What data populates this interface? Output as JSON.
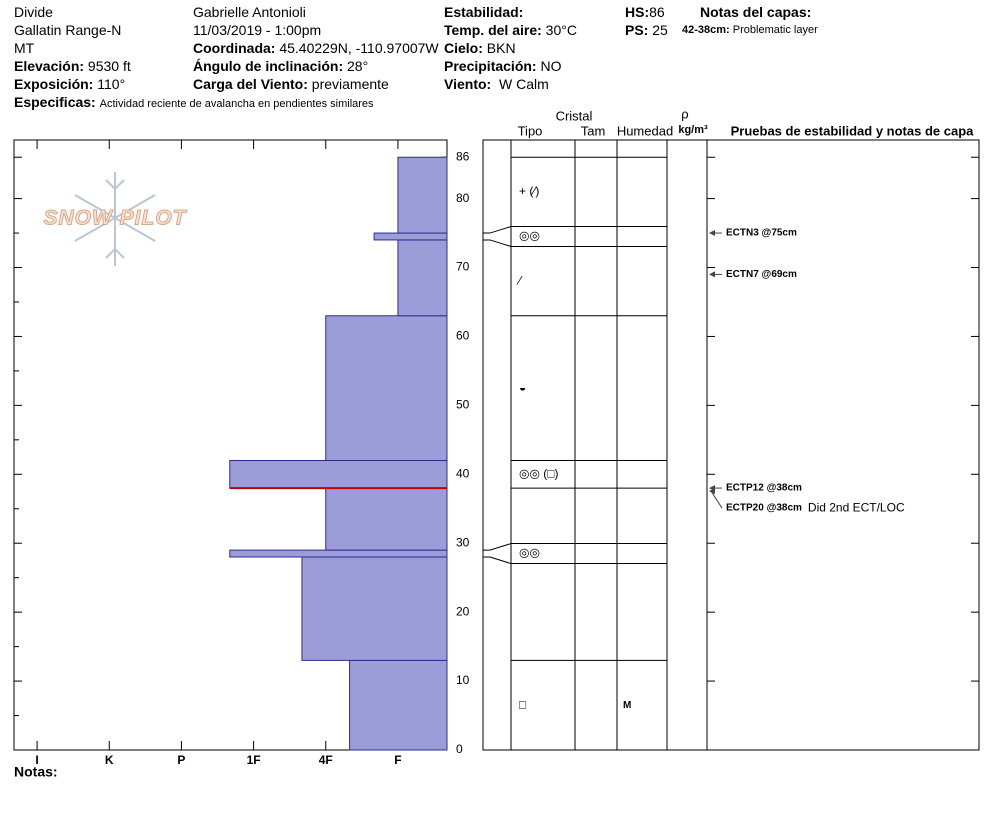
{
  "header": {
    "site": "Divide",
    "range": "Gallatin Range-N",
    "state": "MT",
    "elevation": {
      "label": "Elevación:",
      "value": "9530 ft"
    },
    "aspect": {
      "label": "Exposición:",
      "value": "110°"
    },
    "specifics": {
      "label": "Especificas:",
      "value": "Actividad reciente de avalancha en pendientes similares"
    },
    "observer": "Gabrielle Antonioli",
    "datetime": "11/03/2019 - 1:00pm",
    "coordinates": {
      "label": "Coordinada:",
      "value": "45.40229N, -110.97007W"
    },
    "slope": {
      "label": "Ángulo de inclinación:",
      "value": "28°"
    },
    "wind_loading": {
      "label": "Carga del Viento:",
      "value": "previamente"
    },
    "stability": {
      "label": "Estabilidad:"
    },
    "air_temp": {
      "label": "Temp. del aire:",
      "value": "30°C"
    },
    "sky": {
      "label": "Cielo:",
      "value": "BKN"
    },
    "precipitation": {
      "label": "Precipitación:",
      "value": "NO"
    },
    "wind": {
      "label": "Viento:",
      "value": "W Calm"
    },
    "hs": {
      "label": "HS:",
      "value": "86"
    },
    "ps": {
      "label": "PS:",
      "value": "25"
    },
    "layer_notes": {
      "label": "Notas del capas:",
      "range": "42-38cm:",
      "text": "Problematic layer"
    }
  },
  "chart_data": {
    "type": "snow-profile",
    "logo": "SNOW PILOT",
    "ylim": [
      0,
      88.5
    ],
    "yticks": [
      0,
      10,
      20,
      30,
      40,
      50,
      60,
      70,
      80,
      86
    ],
    "minor_yticks": [
      5,
      15,
      25,
      35,
      45,
      55,
      65,
      75
    ],
    "xlim": [
      6.32,
      0.32
    ],
    "xticks": [
      {
        "value": 6,
        "label": "I"
      },
      {
        "value": 5,
        "label": "K"
      },
      {
        "value": 4,
        "label": "P"
      },
      {
        "value": 3,
        "label": "1F"
      },
      {
        "value": 2,
        "label": "4F"
      },
      {
        "value": 1,
        "label": "F"
      }
    ],
    "color": "#9c9cd8",
    "critical_height": 38,
    "layers": [
      {
        "bottom": 0,
        "top": 13,
        "hardness": 1.67,
        "grain": "□",
        "moisture": "M"
      },
      {
        "bottom": 13,
        "top": 28,
        "hardness": 2.33
      },
      {
        "bottom": 28,
        "top": 29,
        "hardness": 3.33,
        "grain": "◎◎"
      },
      {
        "bottom": 29,
        "top": 38,
        "hardness": 2
      },
      {
        "bottom": 38,
        "top": 42,
        "hardness": 3.33,
        "grain": "◎◎ (□)"
      },
      {
        "bottom": 42,
        "top": 63,
        "hardness": 2,
        "grain": "◒"
      },
      {
        "bottom": 63,
        "top": 74,
        "hardness": 1,
        "grain": "⁄"
      },
      {
        "bottom": 74,
        "top": 75,
        "hardness": 1.33,
        "grain": "◎◎"
      },
      {
        "bottom": 75,
        "top": 86,
        "hardness": 1,
        "grain": "+ (⁄)"
      }
    ],
    "columns": {
      "crystal": "Cristal",
      "type": "Tipo",
      "size": "Tam",
      "moisture": "Humedad",
      "density": "ρ",
      "density_unit": "kg/m³",
      "tests": "Pruebas de estabilidad y notas de capa"
    },
    "tests": [
      {
        "label": "ECTN3 @75cm",
        "height": 75
      },
      {
        "label": "ECTN7 @69cm",
        "height": 69
      },
      {
        "label": "ECTP12 @38cm",
        "height": 38
      },
      {
        "label": "ECTP20 @38cm",
        "note": "Did 2nd ECT/LOC",
        "height": 38
      }
    ],
    "notes_label": "Notas:"
  }
}
